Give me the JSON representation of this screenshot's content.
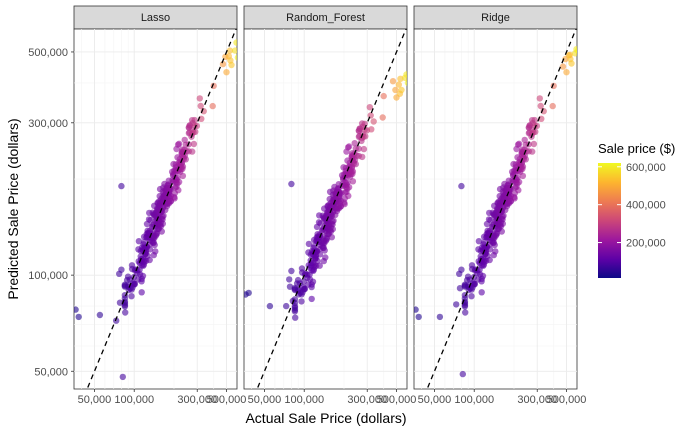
{
  "chart_data": {
    "type": "scatter",
    "facets": [
      "Lasso",
      "Random_Forest",
      "Ridge"
    ],
    "xlabel": "Actual Sale Price (dollars)",
    "ylabel": "Predicted Sale Price (dollars)",
    "x_scale": "log10",
    "y_scale": "log10",
    "xlim": [
      35000,
      600000
    ],
    "ylim": [
      44000,
      590000
    ],
    "x_ticks": [
      50000,
      100000,
      300000,
      500000
    ],
    "x_tick_labels": [
      "50,000",
      "100,000",
      "300,000",
      "500,000"
    ],
    "y_ticks": [
      50000,
      100000,
      300000,
      500000
    ],
    "y_tick_labels": [
      "50,000",
      "100,000",
      "300,000",
      "500,000"
    ],
    "reference_line": "y = x (dashed)",
    "grid": true,
    "legend": {
      "title": "Sale price ($)",
      "placement": "right",
      "type": "colorbar",
      "range": [
        13000,
        620000
      ],
      "ticks": [
        200000,
        400000,
        600000
      ],
      "tick_labels": [
        "200,000",
        "400,000",
        "600,000"
      ],
      "palette": [
        "#0d0887",
        "#5c01a6",
        "#9c179e",
        "#cc4778",
        "#ed7953",
        "#fdb42f",
        "#f0f921"
      ]
    },
    "series_outliers": {
      "Lasso": [
        [
          36000,
          78000
        ],
        [
          38000,
          74000
        ],
        [
          55000,
          75000
        ],
        [
          73000,
          72000
        ],
        [
          78000,
          82000
        ],
        [
          80000,
          190000
        ],
        [
          82000,
          48000
        ],
        [
          77000,
          101000
        ],
        [
          80000,
          104000
        ]
      ],
      "Random_Forest": [
        [
          36000,
          87000
        ],
        [
          38000,
          88000
        ],
        [
          55000,
          80000
        ],
        [
          73000,
          80000
        ],
        [
          78000,
          92000
        ],
        [
          80000,
          193000
        ],
        [
          82000,
          83000
        ],
        [
          77000,
          97000
        ],
        [
          80000,
          103000
        ]
      ],
      "Ridge": [
        [
          36000,
          78000
        ],
        [
          38000,
          74000
        ],
        [
          55000,
          74000
        ],
        [
          73000,
          81000
        ],
        [
          78000,
          91000
        ],
        [
          80000,
          190000
        ],
        [
          82000,
          49000
        ],
        [
          77000,
          101000
        ],
        [
          80000,
          104000
        ]
      ]
    },
    "series_high": {
      "Lasso": [
        [
          470000,
          458000
        ],
        [
          490000,
          483000
        ],
        [
          500000,
          432000
        ],
        [
          520000,
          485000
        ],
        [
          535000,
          470000
        ],
        [
          545000,
          455000
        ],
        [
          530000,
          505000
        ],
        [
          595000,
          535000
        ],
        [
          610000,
          480000
        ],
        [
          580000,
          505000
        ]
      ],
      "Random_Forest": [
        [
          470000,
          405000
        ],
        [
          490000,
          380000
        ],
        [
          500000,
          360000
        ],
        [
          520000,
          395000
        ],
        [
          535000,
          412000
        ],
        [
          545000,
          380000
        ],
        [
          530000,
          370000
        ],
        [
          595000,
          425000
        ],
        [
          610000,
          400000
        ],
        [
          580000,
          415000
        ]
      ],
      "Ridge": [
        [
          470000,
          450000
        ],
        [
          490000,
          475000
        ],
        [
          500000,
          432000
        ],
        [
          520000,
          488000
        ],
        [
          535000,
          475000
        ],
        [
          545000,
          460000
        ],
        [
          530000,
          490000
        ],
        [
          595000,
          510000
        ],
        [
          610000,
          505000
        ],
        [
          580000,
          495000
        ]
      ]
    },
    "series_bulk_noise": {
      "Lasso": 0.075,
      "Random_Forest": 0.08,
      "Ridge": 0.075
    },
    "series_bulk_bias": {
      "Lasso": 1.0,
      "Random_Forest": 0.97,
      "Ridge": 1.0
    }
  }
}
